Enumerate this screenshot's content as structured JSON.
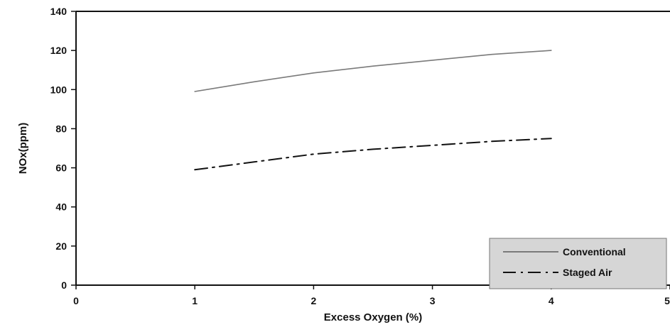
{
  "chart_data": {
    "type": "line",
    "title": "",
    "xlabel": "Excess Oxygen (%)",
    "ylabel": "NOx(ppm)",
    "xlim": [
      0,
      5
    ],
    "ylim": [
      0,
      140
    ],
    "x_ticks": [
      0,
      1,
      2,
      3,
      4,
      5
    ],
    "y_ticks": [
      0,
      20,
      40,
      60,
      80,
      100,
      120,
      140
    ],
    "grid": false,
    "legend_position": "bottom-right",
    "series": [
      {
        "name": "Conventional",
        "style": "solid",
        "color": "#7a7a7a",
        "points": [
          [
            1,
            99
          ],
          [
            1.5,
            104
          ],
          [
            2,
            108.5
          ],
          [
            2.5,
            112
          ],
          [
            3,
            115
          ],
          [
            3.5,
            118
          ],
          [
            4,
            120
          ]
        ]
      },
      {
        "name": "Staged Air",
        "style": "dash-dot",
        "color": "#111111",
        "points": [
          [
            1,
            59
          ],
          [
            1.5,
            63
          ],
          [
            2,
            67
          ],
          [
            2.5,
            69.5
          ],
          [
            3,
            71.5
          ],
          [
            3.5,
            73.5
          ],
          [
            4,
            75
          ]
        ]
      }
    ]
  }
}
